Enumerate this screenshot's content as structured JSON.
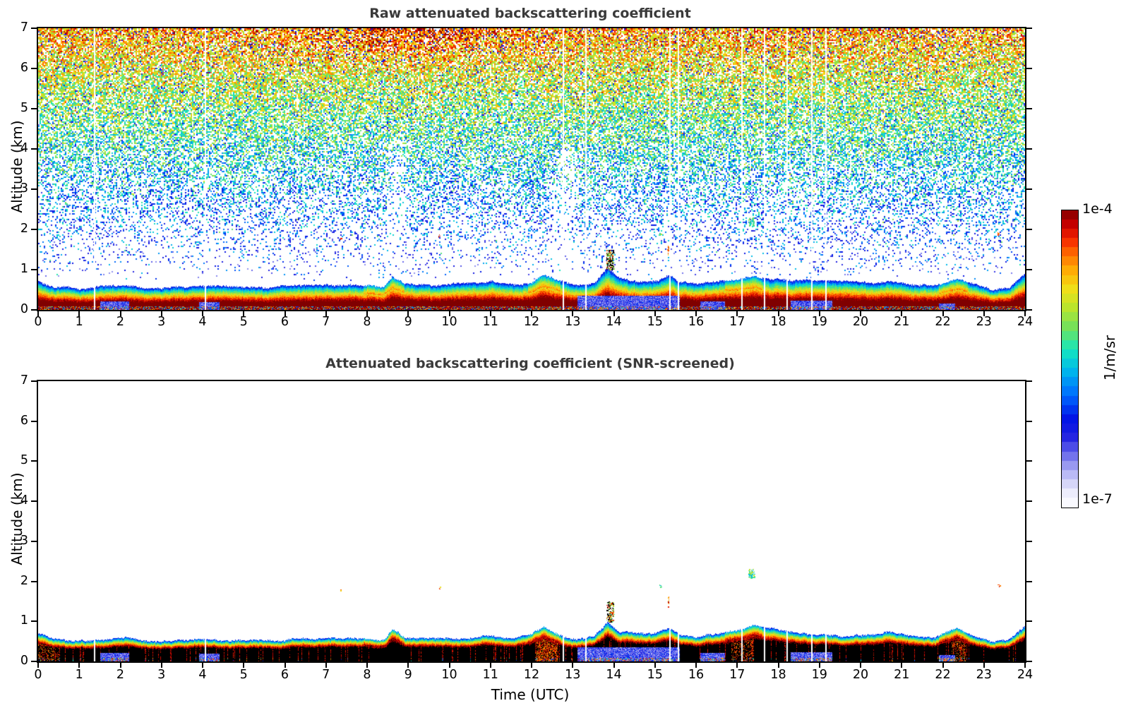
{
  "chart_data": {
    "type": "heatmap",
    "x": {
      "label": "Time (UTC)",
      "range": [
        0,
        24
      ],
      "ticks": [
        0,
        1,
        2,
        3,
        4,
        5,
        6,
        7,
        8,
        9,
        10,
        11,
        12,
        13,
        14,
        15,
        16,
        17,
        18,
        19,
        20,
        21,
        22,
        23,
        24
      ]
    },
    "y": {
      "label": "Altitude (km)",
      "range": [
        0,
        7
      ],
      "ticks": [
        0,
        1,
        2,
        3,
        4,
        5,
        6,
        7
      ]
    },
    "panels": [
      {
        "title": "Raw attenuated backscattering coefficient",
        "ylabel": "Altitude (km)",
        "content": "raw"
      },
      {
        "title": "Attenuated backscattering coefficient (SNR-screened)",
        "ylabel": "Altitude (km)",
        "xlabel": "Time (UTC)",
        "content": "screened"
      }
    ],
    "colorbar": {
      "max_label": "1e-4",
      "min_label": "1e-7",
      "unit_label": "1/m/sr",
      "scale": "log",
      "steps": 32,
      "stops": [
        [
          0.0,
          255,
          255,
          255
        ],
        [
          0.045,
          238,
          238,
          252
        ],
        [
          0.09,
          205,
          205,
          247
        ],
        [
          0.135,
          160,
          160,
          242
        ],
        [
          0.18,
          105,
          105,
          235
        ],
        [
          0.24,
          30,
          30,
          225
        ],
        [
          0.3,
          0,
          20,
          230
        ],
        [
          0.38,
          0,
          110,
          255
        ],
        [
          0.46,
          0,
          185,
          235
        ],
        [
          0.53,
          20,
          230,
          190
        ],
        [
          0.6,
          110,
          225,
          95
        ],
        [
          0.67,
          185,
          228,
          45
        ],
        [
          0.73,
          238,
          225,
          25
        ],
        [
          0.79,
          255,
          180,
          5
        ],
        [
          0.85,
          255,
          110,
          0
        ],
        [
          0.9,
          245,
          40,
          0
        ],
        [
          0.95,
          200,
          0,
          0
        ],
        [
          1.0,
          128,
          0,
          0
        ]
      ]
    },
    "aerosol_layer_top_km": [
      [
        0,
        0.68
      ],
      [
        0.4,
        0.56
      ],
      [
        1.2,
        0.55
      ],
      [
        2.1,
        0.6
      ],
      [
        3.0,
        0.52
      ],
      [
        4.0,
        0.58
      ],
      [
        4.8,
        0.54
      ],
      [
        5.6,
        0.52
      ],
      [
        6.5,
        0.54
      ],
      [
        7.5,
        0.56
      ],
      [
        8.4,
        0.52
      ],
      [
        8.6,
        0.8
      ],
      [
        8.9,
        0.62
      ],
      [
        9.6,
        0.56
      ],
      [
        10.4,
        0.6
      ],
      [
        11.0,
        0.66
      ],
      [
        11.6,
        0.6
      ],
      [
        12.0,
        0.64
      ],
      [
        12.3,
        0.85
      ],
      [
        12.6,
        0.72
      ],
      [
        13.0,
        0.58
      ],
      [
        13.5,
        0.64
      ],
      [
        13.85,
        1.02
      ],
      [
        14.1,
        0.78
      ],
      [
        14.6,
        0.7
      ],
      [
        15.0,
        0.72
      ],
      [
        15.35,
        0.88
      ],
      [
        15.6,
        0.7
      ],
      [
        16.0,
        0.64
      ],
      [
        16.6,
        0.68
      ],
      [
        17.0,
        0.76
      ],
      [
        17.4,
        0.86
      ],
      [
        17.8,
        0.76
      ],
      [
        18.3,
        0.7
      ],
      [
        19.0,
        0.66
      ],
      [
        19.8,
        0.64
      ],
      [
        20.3,
        0.66
      ],
      [
        20.7,
        0.76
      ],
      [
        21.2,
        0.66
      ],
      [
        21.8,
        0.62
      ],
      [
        22.35,
        0.82
      ],
      [
        22.7,
        0.68
      ],
      [
        23.2,
        0.52
      ],
      [
        23.6,
        0.58
      ],
      [
        24,
        0.92
      ]
    ],
    "data_gap_hours": [
      1.35,
      4.05,
      12.75,
      13.3,
      15.35,
      15.55,
      17.1,
      17.65,
      18.2,
      18.8,
      19.15
    ],
    "background_noise": {
      "density_vs_altitude_km": [
        [
          0.72,
          0
        ],
        [
          1.0,
          0.05
        ],
        [
          1.4,
          0.1
        ],
        [
          1.9,
          0.17
        ],
        [
          2.4,
          0.25
        ],
        [
          3.0,
          0.35
        ],
        [
          3.6,
          0.46
        ],
        [
          4.2,
          0.55
        ],
        [
          4.8,
          0.63
        ],
        [
          5.4,
          0.69
        ],
        [
          6.0,
          0.73
        ],
        [
          6.6,
          0.76
        ],
        [
          7.0,
          0.78
        ]
      ],
      "hot_top_center_hour": 8.8,
      "hot_top_sigma_hours": 2.6
    },
    "noise_plumes": [
      {
        "t": 2.9,
        "half_width": 0.5,
        "top_km": 2.3,
        "strength": 0.75
      },
      {
        "t": 8.7,
        "half_width": 0.4,
        "top_km": 4.2,
        "strength": 0.85
      },
      {
        "t": 10.3,
        "half_width": 0.3,
        "top_km": 2.5,
        "strength": 0.5
      },
      {
        "t": 12.8,
        "half_width": 0.5,
        "top_km": 4.0,
        "strength": 0.8
      }
    ],
    "cold_pockets_hours": [
      {
        "t0": 1.5,
        "t1": 2.2,
        "top_km": 0.2
      },
      {
        "t0": 3.9,
        "t1": 4.4,
        "top_km": 0.18
      },
      {
        "t0": 13.1,
        "t1": 15.6,
        "top_km": 0.34
      },
      {
        "t0": 16.1,
        "t1": 16.7,
        "top_km": 0.2
      },
      {
        "t0": 18.3,
        "t1": 19.3,
        "top_km": 0.22
      },
      {
        "t0": 21.9,
        "t1": 22.3,
        "top_km": 0.15
      }
    ],
    "warm_fringe_hours": [
      [
        7.9,
        8.9
      ],
      [
        11.9,
        12.7
      ],
      [
        16.7,
        17.6
      ],
      [
        21.9,
        22.6
      ]
    ],
    "warm_core_hours": [
      {
        "t0": 0,
        "t1": 0.5,
        "p": 0.3
      },
      {
        "t0": 12.1,
        "t1": 12.62,
        "p": 0.6
      },
      {
        "t0": 16.85,
        "t1": 17.4,
        "p": 0.3
      },
      {
        "t0": 22.2,
        "t1": 22.55,
        "p": 0.35
      }
    ],
    "elevated_specks": [
      {
        "t": 7.35,
        "alt_km": 1.78,
        "w": 2,
        "h": 2,
        "type": "warm"
      },
      {
        "t": 9.75,
        "alt_km": 1.85,
        "w": 2,
        "h": 3,
        "type": "warm"
      },
      {
        "t": 13.9,
        "alt_km": 1.25,
        "w": 10,
        "h": 28,
        "type": "core"
      },
      {
        "t": 15.12,
        "alt_km": 1.89,
        "w": 3,
        "h": 4,
        "type": "cool"
      },
      {
        "t": 15.33,
        "alt_km": 1.5,
        "w": 3,
        "h": 14,
        "type": "warm"
      },
      {
        "t": 17.34,
        "alt_km": 2.2,
        "w": 8,
        "h": 13,
        "type": "cool"
      },
      {
        "t": 23.35,
        "alt_km": 1.9,
        "w": 3,
        "h": 3,
        "type": "warm"
      }
    ]
  }
}
